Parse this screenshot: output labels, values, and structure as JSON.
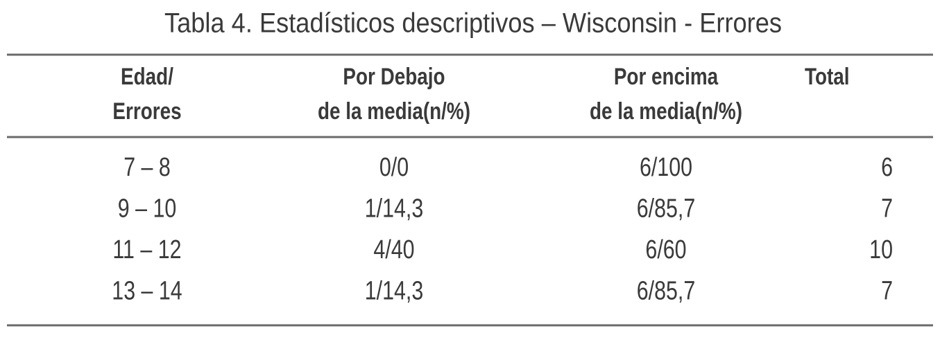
{
  "header": {
    "title": "Tabla 4. Estadísticos descriptivos – Wisconsin - Errores"
  },
  "table": {
    "columns": [
      [
        "Edad/",
        "Errores"
      ],
      [
        "Por Debajo",
        "de la media(n/%)"
      ],
      [
        "Por encima",
        "de la media(n/%)"
      ],
      [
        "Total"
      ]
    ],
    "rows": [
      [
        "7 – 8",
        "0/0",
        "6/100",
        6
      ],
      [
        "9 – 10",
        "1/14,3",
        "6/85,7",
        7
      ],
      [
        "11 – 12",
        "4/40",
        "6/60",
        10
      ],
      [
        "13 – 14",
        "1/14,3",
        "6/85,7",
        7
      ]
    ]
  }
}
